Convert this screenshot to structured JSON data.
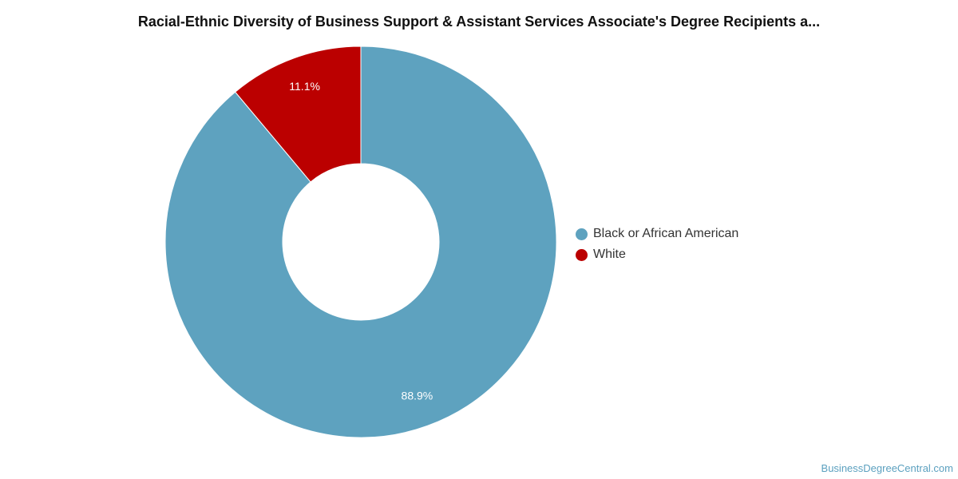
{
  "chart_data": {
    "type": "pie",
    "title": "Racial-Ethnic Diversity of Business Support & Assistant Services Associate's Degree Recipients a...",
    "donut": true,
    "legend_position": "right",
    "slices": [
      {
        "label": "Black or African American",
        "value": 88.9,
        "display": "88.9%",
        "color": "#5ea2bf"
      },
      {
        "label": "White",
        "value": 11.1,
        "display": "11.1%",
        "color": "#bb0000"
      }
    ]
  },
  "footer": {
    "source": "BusinessDegreeCentral.com"
  }
}
